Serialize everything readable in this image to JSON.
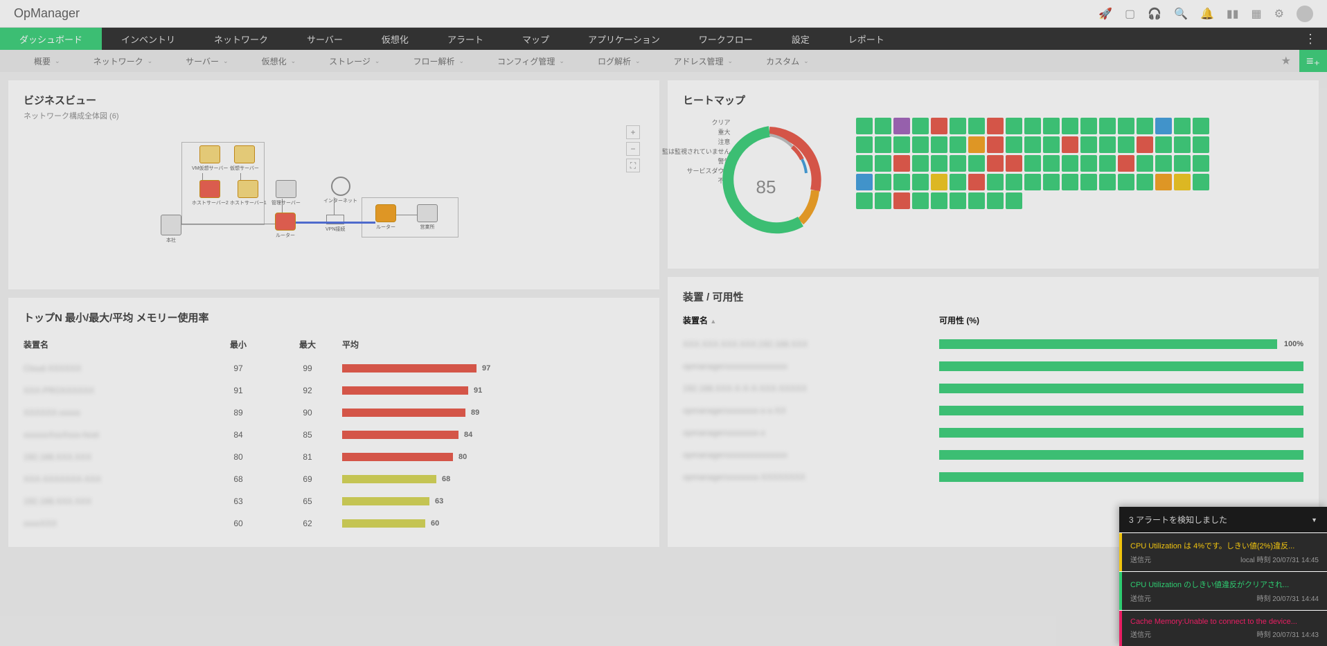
{
  "app_title": "OpManager",
  "nav1": [
    "ダッシュボード",
    "インベントリ",
    "ネットワーク",
    "サーバー",
    "仮想化",
    "アラート",
    "マップ",
    "アプリケーション",
    "ワークフロー",
    "設定",
    "レポート"
  ],
  "nav2": [
    "概要",
    "ネットワーク",
    "サーバー",
    "仮想化",
    "ストレージ",
    "フロー解析",
    "コンフィグ管理",
    "ログ解析",
    "アドレス管理",
    "カスタム"
  ],
  "business_view": {
    "title": "ビジネスビュー",
    "subtitle": "ネットワーク構成全体図 (6)",
    "nodes": {
      "vm1": "VM仮想サーバー",
      "vm2": "仮想サーバー",
      "host1": "ホストサーバー2",
      "host2": "ホストサーバー1",
      "mgmt": "管理サーバー",
      "honsha": "本社",
      "router1": "ルーター",
      "internet": "インターネット",
      "vpn": "VPN接続",
      "router2": "ルーター",
      "eigyo": "営業所"
    }
  },
  "heatmap": {
    "title": "ヒートマップ",
    "legend": [
      "クリア",
      "重大",
      "注意",
      "監は監視されていません",
      "警告",
      "サービスダウン",
      "不明"
    ],
    "gauge_value": "85",
    "colors": {
      "green": "#2ecc71",
      "red": "#e74c3c",
      "orange": "#f39c12",
      "blue": "#3498db",
      "purple": "#9b59b6",
      "yellow": "#f1c40f",
      "gray": "#bbb"
    },
    "cells": [
      "green",
      "green",
      "purple",
      "green",
      "red",
      "green",
      "green",
      "red",
      "green",
      "green",
      "green",
      "green",
      "green",
      "green",
      "green",
      "green",
      "blue",
      "green",
      "green",
      "green",
      "green",
      "green",
      "green",
      "green",
      "green",
      "orange",
      "red",
      "green",
      "green",
      "green",
      "red",
      "green",
      "green",
      "green",
      "red",
      "green",
      "green",
      "green",
      "green",
      "green",
      "red",
      "green",
      "green",
      "green",
      "green",
      "red",
      "red",
      "green",
      "green",
      "green",
      "green",
      "green",
      "red",
      "green",
      "green",
      "green",
      "green",
      "blue",
      "green",
      "green",
      "green",
      "yellow",
      "green",
      "red",
      "green",
      "green",
      "green",
      "green",
      "green",
      "green",
      "green",
      "green",
      "green",
      "orange",
      "yellow",
      "green",
      "green",
      "green",
      "red",
      "green",
      "green",
      "green",
      "green",
      "green",
      "green"
    ]
  },
  "topn": {
    "title": "トップN 最小/最大/平均 メモリー使用率",
    "col_name": "装置名",
    "col_min": "最小",
    "col_max": "最大",
    "col_avg": "平均",
    "bar_color_high": "#e74c3c",
    "bar_color_low": "#d4d44a",
    "rows": [
      {
        "name": "Cloud-XXXXXX",
        "min": "97",
        "max": "99",
        "avg": 97
      },
      {
        "name": "XXX-PROXXXXXX",
        "min": "91",
        "max": "92",
        "avg": 91
      },
      {
        "name": "XXXXXX-xxxxx",
        "min": "89",
        "max": "90",
        "avg": 89
      },
      {
        "name": "xxxxxxXxxXxxx-host",
        "min": "84",
        "max": "85",
        "avg": 84
      },
      {
        "name": "192.168.XXX.XXX",
        "min": "80",
        "max": "81",
        "avg": 80
      },
      {
        "name": "XXX-XXXXXXX-XXX",
        "min": "68",
        "max": "69",
        "avg": 68
      },
      {
        "name": "192.168.XXX.XXX",
        "min": "63",
        "max": "65",
        "avg": 63
      },
      {
        "name": "xxxxXXX",
        "min": "60",
        "max": "62",
        "avg": 60
      }
    ]
  },
  "availability": {
    "title": "装置 / 可用性",
    "col_name": "装置名",
    "col_pct": "可用性 (%)",
    "bar_color": "#2ecc71",
    "first_pct": "100%",
    "rows": [
      {
        "name": "XXX.XXX.XXX.XXX;192.168.XXX"
      },
      {
        "name": "opmanagerxxxxxxxxxxxxxxx"
      },
      {
        "name": "192.168.XXX-X-X-X-XXX-XXXXX"
      },
      {
        "name": "opmanagerxxxxxxxx-x-x-XX"
      },
      {
        "name": "opmanagerxxxxxxxx-x"
      },
      {
        "name": "opmanagerxxxxxxxxxxxxxxx"
      },
      {
        "name": "opmanagerxxxxxxxx-XXXXXXXX"
      }
    ]
  },
  "alerts": {
    "header": "3 アラートを検知しました",
    "from_label": "送信元",
    "items": [
      {
        "msg": "CPU Utilization は 4%です。しきい値(2%)違反...",
        "time": "local 時刻 20/07/31 14:45",
        "color": "#f1c40f",
        "text_color": "#f1c40f"
      },
      {
        "msg": "CPU Utilization のしきい値違反がクリアされ...",
        "time": "時刻 20/07/31 14:44",
        "color": "#2ecc71",
        "text_color": "#2ecc71"
      },
      {
        "msg": "Cache Memory:Unable to connect to the device...",
        "time": "時刻 20/07/31 14:43",
        "color": "#e91e63",
        "text_color": "#e91e63"
      }
    ]
  }
}
